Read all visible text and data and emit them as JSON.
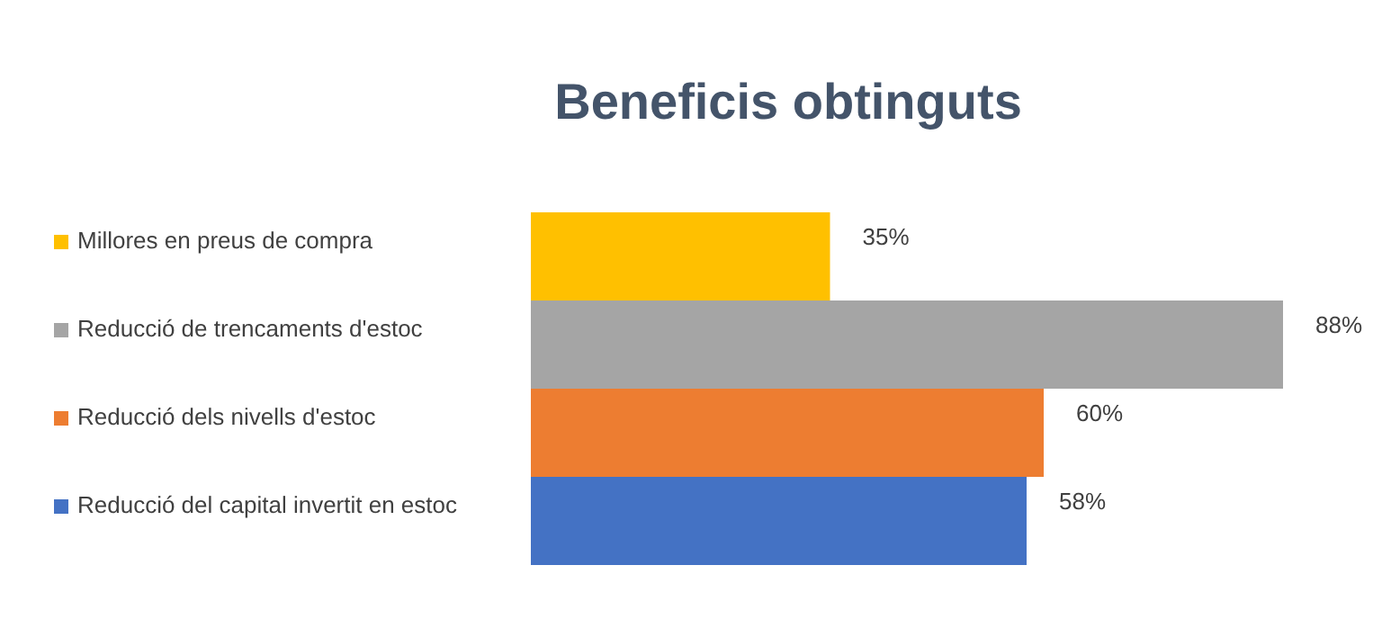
{
  "chart_data": {
    "type": "bar",
    "title": "Beneficis obtinguts",
    "orientation": "horizontal",
    "categories": [
      null
    ],
    "legend": "left",
    "series": [
      {
        "name": "Millores en preus de compra",
        "color": "#ffc000",
        "values": [
          35
        ],
        "value_labels": [
          "35%"
        ]
      },
      {
        "name": "Reducció de trencaments d'estoc",
        "color": "#a5a5a5",
        "values": [
          88
        ],
        "value_labels": [
          "88%"
        ]
      },
      {
        "name": "Reducció dels nivells d'estoc",
        "color": "#ed7d31",
        "values": [
          60
        ],
        "value_labels": [
          "60%"
        ]
      },
      {
        "name": "Reducció del capital invertit en estoc",
        "color": "#4472c4",
        "values": [
          58
        ],
        "value_labels": [
          "58%"
        ]
      }
    ]
  }
}
